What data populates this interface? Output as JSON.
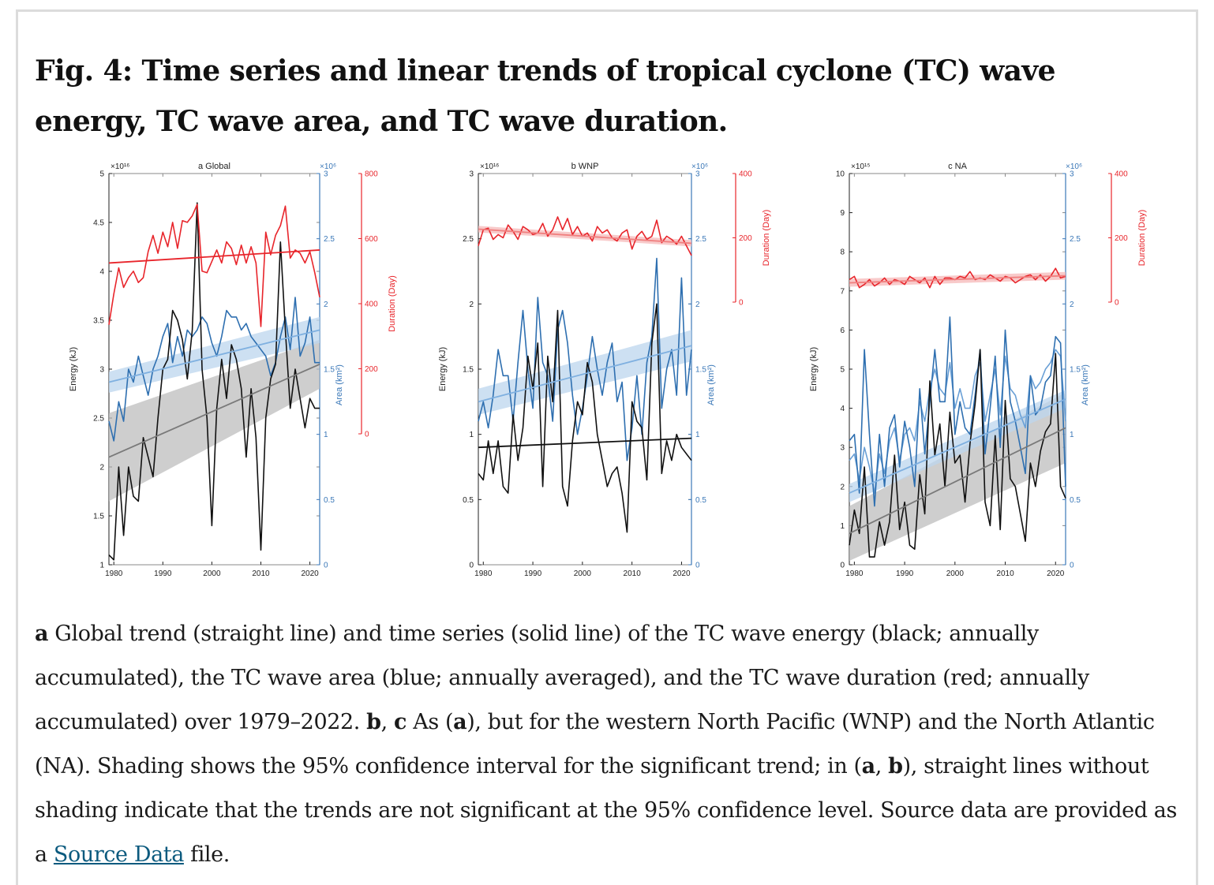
{
  "figure": {
    "title": "Fig. 4: Time series and linear trends of tropical cyclone (TC) wave energy, TC wave area, and TC wave duration.",
    "caption": {
      "p_a": "a",
      "t1": " Global trend (straight line) and time series (solid line) of the TC wave energy (black; annually accumulated), the TC wave area (blue; annually averaged), and the TC wave duration (red; annually accumulated) over 1979–2022. ",
      "p_b": "b",
      "t2": ", ",
      "p_c": "c",
      "t3": " As (",
      "p_a2": "a",
      "t4": "), but for the western North Pacific (WNP) and the North Atlantic (NA). Shading shows the 95% confidence interval for the significant trend; in (",
      "p_a3": "a",
      "t5": ", ",
      "p_b2": "b",
      "t6": "), straight lines without shading indicate that the trends are not significant at the 95% confidence level. Source data are provided as a ",
      "link": "Source Data",
      "t7": " file."
    }
  },
  "colors": {
    "energy": "#111111",
    "area": "#2e6fb0",
    "duration": "#e8252b",
    "area_axis": "#3b78b8",
    "duration_axis": "#e8252b",
    "energy_ci": "#bdbdbd",
    "area_ci": "#bcd6ee",
    "duration_ci": "#f6b8b8"
  },
  "chart_data": [
    {
      "type": "line",
      "title": "a Global",
      "x": [
        1979,
        1980,
        1981,
        1982,
        1983,
        1984,
        1985,
        1986,
        1987,
        1988,
        1989,
        1990,
        1991,
        1992,
        1993,
        1994,
        1995,
        1996,
        1997,
        1998,
        1999,
        2000,
        2001,
        2002,
        2003,
        2004,
        2005,
        2006,
        2007,
        2008,
        2009,
        2010,
        2011,
        2012,
        2013,
        2014,
        2015,
        2016,
        2017,
        2018,
        2019,
        2020,
        2021,
        2022
      ],
      "xlim": [
        1979,
        2022
      ],
      "xticks": [
        "1980",
        "1990",
        "2000",
        "2010",
        "2020"
      ],
      "energy_axis": {
        "label": "Energy (kJ)",
        "exponent": "×10¹⁶",
        "lim": [
          1,
          5
        ],
        "ticks": [
          "1",
          "1.5",
          "2",
          "2.5",
          "3",
          "3.5",
          "4",
          "4.5",
          "5"
        ]
      },
      "area_axis": {
        "label": "Area (km²)",
        "exponent": "×10⁶",
        "lim": [
          0,
          3
        ],
        "ticks": [
          "0",
          "0.5",
          "1",
          "1.5",
          "2",
          "2.5",
          "3"
        ]
      },
      "duration_axis": {
        "label": "Duration (Day)",
        "lim": [
          0,
          800
        ],
        "ticks": [
          "0",
          "200",
          "400",
          "600",
          "800"
        ]
      },
      "series": [
        {
          "name": "energy",
          "axis": "energy",
          "values": [
            1.1,
            1.05,
            2.0,
            1.3,
            2.0,
            1.7,
            1.65,
            2.3,
            2.1,
            1.9,
            2.5,
            3.0,
            3.1,
            3.6,
            3.5,
            3.3,
            2.9,
            3.4,
            4.7,
            3.0,
            2.5,
            1.4,
            2.6,
            3.1,
            2.7,
            3.25,
            3.1,
            2.8,
            2.1,
            2.8,
            2.3,
            1.15,
            2.5,
            2.9,
            3.05,
            4.3,
            3.4,
            2.6,
            3.0,
            2.7,
            2.4,
            2.7,
            2.6,
            2.6
          ]
        },
        {
          "name": "area",
          "axis": "area",
          "values": [
            1.1,
            0.95,
            1.25,
            1.1,
            1.5,
            1.4,
            1.6,
            1.45,
            1.3,
            1.5,
            1.6,
            1.75,
            1.85,
            1.55,
            1.75,
            1.6,
            1.8,
            1.75,
            1.8,
            1.9,
            1.85,
            1.7,
            1.6,
            1.75,
            1.95,
            1.9,
            1.9,
            1.8,
            1.85,
            1.75,
            1.7,
            1.65,
            1.6,
            1.45,
            1.55,
            1.75,
            1.9,
            1.65,
            2.05,
            1.6,
            1.7,
            1.9,
            1.55,
            1.55
          ]
        },
        {
          "name": "duration",
          "axis": "duration",
          "values": [
            335,
            430,
            510,
            450,
            480,
            500,
            465,
            480,
            560,
            610,
            555,
            620,
            575,
            650,
            570,
            655,
            650,
            670,
            705,
            500,
            495,
            530,
            565,
            525,
            590,
            570,
            520,
            580,
            525,
            575,
            525,
            330,
            620,
            550,
            610,
            640,
            700,
            540,
            565,
            555,
            525,
            560,
            495,
            420
          ]
        }
      ],
      "trends": [
        {
          "name": "energy",
          "axis": "energy",
          "start": 2.1,
          "end": 3.05,
          "ci_start": 0.45,
          "ci_end": 0.25
        },
        {
          "name": "area",
          "axis": "area",
          "start": 1.4,
          "end": 1.8,
          "ci_start": 0.08,
          "ci_end": 0.1
        },
        {
          "name": "duration",
          "axis": "duration",
          "start": 525,
          "end": 565
        }
      ]
    },
    {
      "type": "line",
      "title": "b WNP",
      "x": [
        1979,
        1980,
        1981,
        1982,
        1983,
        1984,
        1985,
        1986,
        1987,
        1988,
        1989,
        1990,
        1991,
        1992,
        1993,
        1994,
        1995,
        1996,
        1997,
        1998,
        1999,
        2000,
        2001,
        2002,
        2003,
        2004,
        2005,
        2006,
        2007,
        2008,
        2009,
        2010,
        2011,
        2012,
        2013,
        2014,
        2015,
        2016,
        2017,
        2018,
        2019,
        2020,
        2021,
        2022
      ],
      "xlim": [
        1979,
        2022
      ],
      "xticks": [
        "1980",
        "1990",
        "2000",
        "2010",
        "2020"
      ],
      "energy_axis": {
        "label": "Energy (kJ)",
        "exponent": "×10¹⁶",
        "lim": [
          0,
          3
        ],
        "ticks": [
          "0",
          "0.5",
          "1",
          "1.5",
          "2",
          "2.5",
          "3"
        ]
      },
      "area_axis": {
        "label": "Area (km²)",
        "exponent": "×10⁶",
        "lim": [
          0,
          3
        ],
        "ticks": [
          "0",
          "0.5",
          "1",
          "1.5",
          "2",
          "2.5",
          "3"
        ]
      },
      "duration_axis": {
        "label": "Duration (Day)",
        "lim": [
          0,
          400
        ],
        "ticks": [
          "0",
          "200",
          "400"
        ]
      },
      "series": [
        {
          "name": "energy",
          "axis": "energy",
          "values": [
            0.7,
            0.65,
            0.95,
            0.7,
            0.95,
            0.6,
            0.55,
            1.15,
            0.8,
            1.05,
            1.6,
            1.35,
            1.7,
            0.6,
            1.6,
            1.25,
            1.95,
            0.6,
            0.45,
            0.95,
            1.25,
            1.15,
            1.55,
            1.4,
            1.0,
            0.8,
            0.6,
            0.7,
            0.75,
            0.55,
            0.25,
            1.25,
            1.1,
            1.05,
            0.65,
            1.7,
            2.0,
            0.7,
            0.95,
            0.8,
            1.0,
            0.9,
            0.85,
            0.8
          ]
        },
        {
          "name": "area",
          "axis": "area",
          "values": [
            1.1,
            1.25,
            1.05,
            1.3,
            1.65,
            1.45,
            1.45,
            1.1,
            1.55,
            1.95,
            1.5,
            1.2,
            2.05,
            1.55,
            1.45,
            1.1,
            1.8,
            1.95,
            1.7,
            1.3,
            1.0,
            1.2,
            1.45,
            1.75,
            1.5,
            1.3,
            1.55,
            1.7,
            1.25,
            1.4,
            0.8,
            1.05,
            1.45,
            1.0,
            1.55,
            1.75,
            2.35,
            1.2,
            1.5,
            1.65,
            1.3,
            2.2,
            1.3,
            1.65
          ]
        },
        {
          "name": "duration",
          "axis": "duration",
          "values": [
            175,
            225,
            230,
            195,
            210,
            200,
            240,
            220,
            195,
            235,
            225,
            210,
            215,
            245,
            205,
            225,
            265,
            225,
            260,
            210,
            235,
            205,
            215,
            190,
            235,
            215,
            225,
            200,
            190,
            215,
            225,
            165,
            205,
            220,
            195,
            205,
            255,
            185,
            205,
            195,
            180,
            205,
            175,
            145
          ]
        }
      ],
      "trends": [
        {
          "name": "energy",
          "axis": "energy",
          "start": 0.9,
          "end": 0.97
        },
        {
          "name": "area",
          "axis": "area",
          "start": 1.25,
          "end": 1.68,
          "ci_start": 0.1,
          "ci_end": 0.12
        },
        {
          "name": "duration",
          "axis": "duration",
          "start": 227,
          "end": 183,
          "ci_start": 10,
          "ci_end": 10
        }
      ]
    },
    {
      "type": "line",
      "title": "c NA",
      "x": [
        1979,
        1980,
        1981,
        1982,
        1983,
        1984,
        1985,
        1986,
        1987,
        1988,
        1989,
        1990,
        1991,
        1992,
        1993,
        1994,
        1995,
        1996,
        1997,
        1998,
        1999,
        2000,
        2001,
        2002,
        2003,
        2004,
        2005,
        2006,
        2007,
        2008,
        2009,
        2010,
        2011,
        2012,
        2013,
        2014,
        2015,
        2016,
        2017,
        2018,
        2019,
        2020,
        2021,
        2022
      ],
      "xlim": [
        1979,
        2022
      ],
      "xticks": [
        "1980",
        "1990",
        "2000",
        "2010",
        "2020"
      ],
      "energy_axis": {
        "label": "Energy (kJ)",
        "exponent": "×10¹⁵",
        "lim": [
          0,
          10
        ],
        "ticks": [
          "0",
          "1",
          "2",
          "3",
          "4",
          "5",
          "6",
          "7",
          "8",
          "9",
          "10"
        ]
      },
      "area_axis": {
        "label": "Area (km²)",
        "exponent": "×10⁶",
        "lim": [
          0,
          3
        ],
        "ticks": [
          "0",
          "0.5",
          "1",
          "1.5",
          "2",
          "2.5",
          "3"
        ]
      },
      "duration_axis": {
        "label": "Duration (Day)",
        "lim": [
          0,
          400
        ],
        "ticks": [
          "0",
          "200",
          "400"
        ]
      },
      "series": [
        {
          "name": "energy",
          "axis": "energy",
          "values": [
            0.5,
            1.4,
            0.8,
            2.5,
            0.2,
            0.2,
            1.1,
            0.5,
            1.1,
            2.8,
            0.9,
            1.6,
            0.5,
            0.4,
            2.3,
            1.3,
            4.7,
            2.8,
            3.6,
            2.0,
            3.9,
            2.6,
            2.8,
            1.6,
            3.1,
            4.1,
            5.5,
            1.6,
            1.0,
            3.3,
            0.9,
            4.2,
            2.2,
            2.0,
            1.3,
            0.6,
            2.6,
            2.0,
            2.9,
            3.4,
            3.6,
            5.4,
            2.0,
            1.7
          ]
        },
        {
          "name": "area",
          "axis": "area",
          "values": [
            0.95,
            1.0,
            0.55,
            1.65,
            1.0,
            0.45,
            1.0,
            0.6,
            1.05,
            1.15,
            0.75,
            1.1,
            0.9,
            0.6,
            1.35,
            0.85,
            1.25,
            1.65,
            1.25,
            1.25,
            1.9,
            1.0,
            1.25,
            1.05,
            1.0,
            1.3,
            1.65,
            0.85,
            1.2,
            1.6,
            0.9,
            1.8,
            1.25,
            1.1,
            0.9,
            0.7,
            1.45,
            1.15,
            1.2,
            1.4,
            1.45,
            1.75,
            1.7,
            0.6
          ]
        },
        {
          "name": "area_b",
          "axis": "area",
          "values": [
            0.8,
            0.85,
            0.65,
            0.9,
            0.75,
            0.55,
            0.85,
            0.7,
            0.95,
            1.05,
            0.8,
            1.0,
            1.05,
            0.95,
            1.25,
            1.1,
            1.35,
            1.5,
            1.35,
            1.3,
            1.55,
            1.2,
            1.35,
            1.2,
            1.2,
            1.45,
            1.55,
            1.1,
            1.3,
            1.5,
            1.15,
            1.6,
            1.35,
            1.3,
            1.15,
            1.05,
            1.45,
            1.35,
            1.4,
            1.5,
            1.55,
            1.65,
            1.6,
            1.1
          ]
        },
        {
          "name": "duration",
          "axis": "duration",
          "values": [
            70,
            80,
            45,
            55,
            70,
            50,
            60,
            75,
            55,
            70,
            65,
            55,
            80,
            70,
            60,
            75,
            45,
            80,
            55,
            75,
            75,
            70,
            80,
            75,
            95,
            70,
            75,
            70,
            85,
            75,
            65,
            80,
            75,
            60,
            70,
            80,
            85,
            70,
            85,
            65,
            80,
            105,
            75,
            80
          ]
        }
      ],
      "trends": [
        {
          "name": "energy",
          "axis": "energy",
          "start": 0.8,
          "end": 3.5,
          "ci_start": 0.7,
          "ci_end": 0.9
        },
        {
          "name": "area",
          "axis": "area",
          "start": 0.55,
          "end": 1.27,
          "ci_start": 0.07,
          "ci_end": 0.07
        },
        {
          "name": "duration",
          "axis": "duration",
          "start": 60,
          "end": 82,
          "ci_start": 12,
          "ci_end": 12
        }
      ]
    }
  ]
}
